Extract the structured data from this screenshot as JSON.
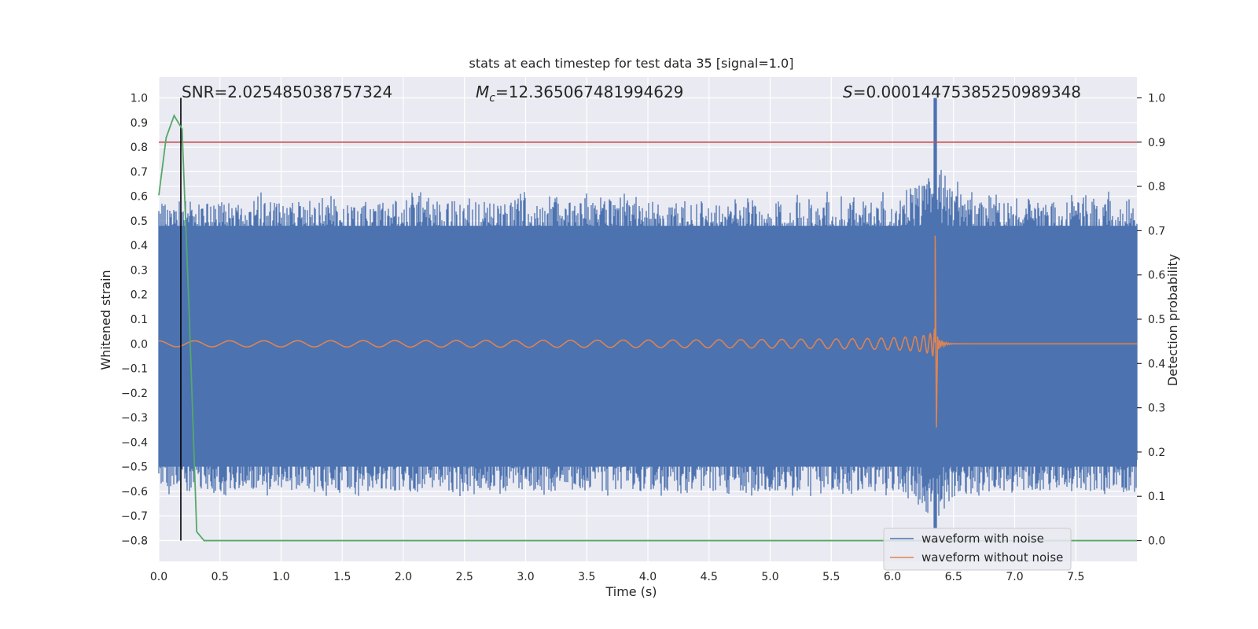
{
  "chart_data": {
    "type": "line",
    "title": "stats at each timestep for test data 35 [signal=1.0]",
    "xlabel": "Time (s)",
    "ylabel_left": "Whitened strain",
    "ylabel_right": "Detection probability",
    "xlim": [
      0.0,
      8.0
    ],
    "ylim_left": [
      -0.885,
      1.085
    ],
    "ylim_right": [
      -0.047,
      1.047
    ],
    "x_ticks": [
      "0.0",
      "0.5",
      "1.0",
      "1.5",
      "2.0",
      "2.5",
      "3.0",
      "3.5",
      "4.0",
      "4.5",
      "5.0",
      "5.5",
      "6.0",
      "6.5",
      "7.0",
      "7.5"
    ],
    "y_left_ticks": [
      "1.0",
      "0.9",
      "0.8",
      "0.7",
      "0.6",
      "0.5",
      "0.4",
      "0.3",
      "0.2",
      "0.1",
      "0.0",
      "−0.1",
      "−0.2",
      "−0.3",
      "−0.4",
      "−0.5",
      "−0.6",
      "−0.7",
      "−0.8"
    ],
    "y_right_ticks": [
      "1.0",
      "0.9",
      "0.8",
      "0.7",
      "0.6",
      "0.5",
      "0.4",
      "0.3",
      "0.2",
      "0.1",
      "0.0"
    ],
    "grid": true,
    "background": "#eaeaf2",
    "annotations": {
      "snr": "SNR=2.025485038757324",
      "mc_symbol": "M",
      "mc_sub": "c",
      "mc_value": "=12.365067481994629",
      "s_symbol": "S",
      "s_value": "=0.00014475385250989348"
    },
    "threshold": {
      "y_right": 0.9,
      "color": "#c44e52"
    },
    "marker_line": {
      "x": 0.18,
      "color": "#000000"
    },
    "series": [
      {
        "name": "waveform with noise",
        "color": "#4c72b0",
        "axis": "left",
        "envelope": {
          "upper": 0.6,
          "lower": -0.62
        },
        "peak": {
          "x": 6.35,
          "max": 1.0,
          "min": -0.75
        }
      },
      {
        "name": "waveform without noise",
        "color": "#dd8452",
        "axis": "left",
        "chirp": {
          "t_start": 0.0,
          "t_merge": 6.35,
          "peak_amp": 0.44,
          "trough": -0.34
        }
      },
      {
        "name": "",
        "color": "#55a868",
        "axis": "right",
        "x": [
          0.0,
          0.06,
          0.125,
          0.19,
          0.25,
          0.31,
          0.37,
          0.45,
          8.0
        ],
        "y": [
          0.78,
          0.91,
          0.96,
          0.93,
          0.5,
          0.02,
          0.0,
          0.0,
          0.0
        ]
      }
    ],
    "legend": {
      "placement": "lower-right",
      "entries": [
        "waveform with noise",
        "waveform without noise"
      ]
    }
  }
}
